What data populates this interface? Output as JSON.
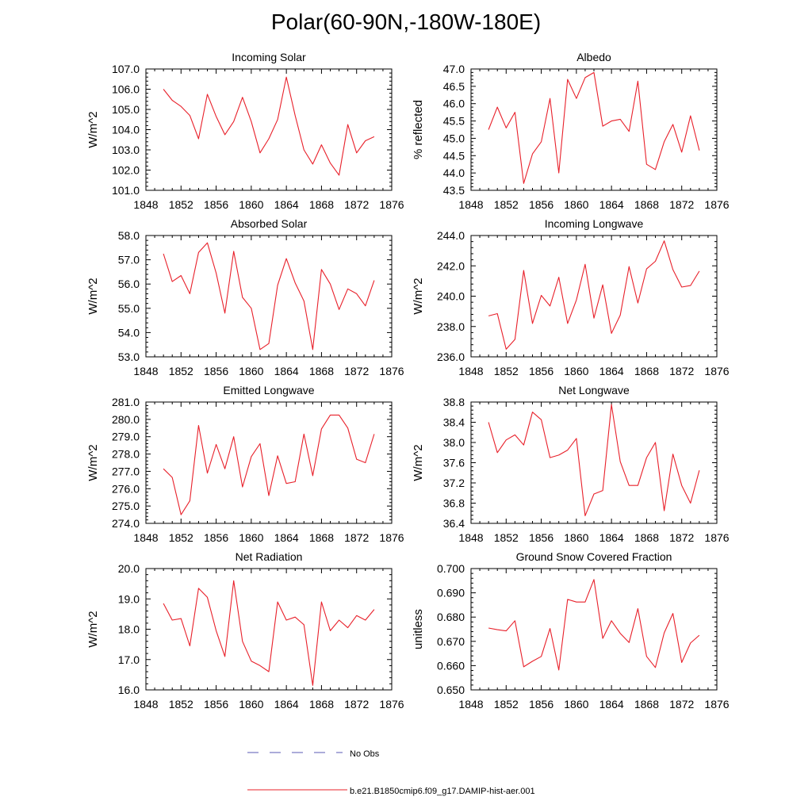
{
  "title": "Polar(60-90N,-180W-180E)",
  "legend": {
    "entries": [
      {
        "label": "No Obs",
        "color": "#5a5ab4",
        "dash": true
      },
      {
        "label": "b.e21.B1850cmip6.f09_g17.DAMIP-hist-aer.001",
        "color": "#e8202a",
        "dash": false
      }
    ]
  },
  "series_color": "#e8202a",
  "chart_data": [
    {
      "type": "line",
      "title": "Incoming Solar",
      "ylabel": "W/m^2",
      "xlim": [
        1848,
        1876
      ],
      "ylim": [
        101,
        107
      ],
      "xticks": [
        1848,
        1852,
        1856,
        1860,
        1864,
        1868,
        1872,
        1876
      ],
      "xtick_labels": [
        "1848",
        "1852",
        "1856",
        "1860",
        "1864",
        "1868",
        "1872",
        "1876"
      ],
      "yticks": [
        101,
        102,
        103,
        104,
        105,
        106,
        107
      ],
      "ytick_labels": [
        "101.0",
        "102.0",
        "103.0",
        "104.0",
        "105.0",
        "106.0",
        "107.0"
      ],
      "x": [
        1850,
        1851,
        1852,
        1853,
        1854,
        1855,
        1856,
        1857,
        1858,
        1859,
        1860,
        1861,
        1862,
        1863,
        1864,
        1865,
        1866,
        1867,
        1868,
        1869,
        1870,
        1871,
        1872,
        1873,
        1874
      ],
      "series": [
        {
          "name": "b.e21.B1850cmip6.f09_g17.DAMIP-hist-aer.001",
          "values": [
            106.0,
            105.45,
            105.15,
            104.7,
            103.55,
            105.75,
            104.65,
            103.75,
            104.4,
            105.6,
            104.4,
            102.85,
            103.55,
            104.5,
            106.6,
            104.7,
            103.0,
            102.3,
            103.25,
            102.35,
            101.75,
            104.25,
            102.85,
            103.45,
            103.65
          ]
        }
      ]
    },
    {
      "type": "line",
      "title": "Albedo",
      "ylabel": "% reflected",
      "xlim": [
        1848,
        1876
      ],
      "ylim": [
        43.5,
        47.0
      ],
      "xticks": [
        1848,
        1852,
        1856,
        1860,
        1864,
        1868,
        1872,
        1876
      ],
      "xtick_labels": [
        "1848",
        "1852",
        "1856",
        "1860",
        "1864",
        "1868",
        "1872",
        "1876"
      ],
      "yticks": [
        43.5,
        44.0,
        44.5,
        45.0,
        45.5,
        46.0,
        46.5,
        47.0
      ],
      "ytick_labels": [
        "43.5",
        "44.0",
        "44.5",
        "45.0",
        "45.5",
        "46.0",
        "46.5",
        "47.0"
      ],
      "x": [
        1850,
        1851,
        1852,
        1853,
        1854,
        1855,
        1856,
        1857,
        1858,
        1859,
        1860,
        1861,
        1862,
        1863,
        1864,
        1865,
        1866,
        1867,
        1868,
        1869,
        1870,
        1871,
        1872,
        1873,
        1874
      ],
      "series": [
        {
          "name": "b.e21.B1850cmip6.f09_g17.DAMIP-hist-aer.001",
          "values": [
            45.25,
            45.9,
            45.3,
            45.75,
            43.7,
            44.55,
            44.9,
            46.15,
            44.0,
            46.7,
            46.15,
            46.75,
            46.9,
            45.35,
            45.5,
            45.55,
            45.2,
            46.65,
            44.25,
            44.1,
            44.9,
            45.4,
            44.6,
            45.65,
            44.65
          ]
        }
      ]
    },
    {
      "type": "line",
      "title": "Absorbed Solar",
      "ylabel": "W/m^2",
      "xlim": [
        1848,
        1876
      ],
      "ylim": [
        53,
        58
      ],
      "xticks": [
        1848,
        1852,
        1856,
        1860,
        1864,
        1868,
        1872,
        1876
      ],
      "xtick_labels": [
        "1848",
        "1852",
        "1856",
        "1860",
        "1864",
        "1868",
        "1872",
        "1876"
      ],
      "yticks": [
        53,
        54,
        55,
        56,
        57,
        58
      ],
      "ytick_labels": [
        "53.0",
        "54.0",
        "55.0",
        "56.0",
        "57.0",
        "58.0"
      ],
      "x": [
        1850,
        1851,
        1852,
        1853,
        1854,
        1855,
        1856,
        1857,
        1858,
        1859,
        1860,
        1861,
        1862,
        1863,
        1864,
        1865,
        1866,
        1867,
        1868,
        1869,
        1870,
        1871,
        1872,
        1873,
        1874
      ],
      "series": [
        {
          "name": "b.e21.B1850cmip6.f09_g17.DAMIP-hist-aer.001",
          "values": [
            57.25,
            56.1,
            56.35,
            55.6,
            57.3,
            57.7,
            56.45,
            54.8,
            57.35,
            55.45,
            55.0,
            53.3,
            53.55,
            55.95,
            57.05,
            56.05,
            55.3,
            53.3,
            56.6,
            56.0,
            54.95,
            55.8,
            55.6,
            55.1,
            56.15
          ]
        }
      ]
    },
    {
      "type": "line",
      "title": "Incoming Longwave",
      "ylabel": "W/m^2",
      "xlim": [
        1848,
        1876
      ],
      "ylim": [
        236,
        244
      ],
      "xticks": [
        1848,
        1852,
        1856,
        1860,
        1864,
        1868,
        1872,
        1876
      ],
      "xtick_labels": [
        "1848",
        "1852",
        "1856",
        "1860",
        "1864",
        "1868",
        "1872",
        "1876"
      ],
      "yticks": [
        236,
        238,
        240,
        242,
        244
      ],
      "ytick_labels": [
        "236.0",
        "238.0",
        "240.0",
        "242.0",
        "244.0"
      ],
      "x": [
        1850,
        1851,
        1852,
        1853,
        1854,
        1855,
        1856,
        1857,
        1858,
        1859,
        1860,
        1861,
        1862,
        1863,
        1864,
        1865,
        1866,
        1867,
        1868,
        1869,
        1870,
        1871,
        1872,
        1873,
        1874
      ],
      "series": [
        {
          "name": "b.e21.B1850cmip6.f09_g17.DAMIP-hist-aer.001",
          "values": [
            238.7,
            238.85,
            236.5,
            237.15,
            241.7,
            238.2,
            240.05,
            239.35,
            241.25,
            238.2,
            239.75,
            242.1,
            238.55,
            240.75,
            237.55,
            238.75,
            241.95,
            239.55,
            241.8,
            242.3,
            243.65,
            241.75,
            240.6,
            240.7,
            241.65
          ]
        }
      ]
    },
    {
      "type": "line",
      "title": "Emitted Longwave",
      "ylabel": "W/m^2",
      "xlim": [
        1848,
        1876
      ],
      "ylim": [
        274,
        281
      ],
      "xticks": [
        1848,
        1852,
        1856,
        1860,
        1864,
        1868,
        1872,
        1876
      ],
      "xtick_labels": [
        "1848",
        "1852",
        "1856",
        "1860",
        "1864",
        "1868",
        "1872",
        "1876"
      ],
      "yticks": [
        274,
        275,
        276,
        277,
        278,
        279,
        280,
        281
      ],
      "ytick_labels": [
        "274.0",
        "275.0",
        "276.0",
        "277.0",
        "278.0",
        "279.0",
        "280.0",
        "281.0"
      ],
      "x": [
        1850,
        1851,
        1852,
        1853,
        1854,
        1855,
        1856,
        1857,
        1858,
        1859,
        1860,
        1861,
        1862,
        1863,
        1864,
        1865,
        1866,
        1867,
        1868,
        1869,
        1870,
        1871,
        1872,
        1873,
        1874
      ],
      "series": [
        {
          "name": "b.e21.B1850cmip6.f09_g17.DAMIP-hist-aer.001",
          "values": [
            277.15,
            276.65,
            274.5,
            275.3,
            279.65,
            276.9,
            278.55,
            277.15,
            279.0,
            276.1,
            277.85,
            278.6,
            275.6,
            277.9,
            276.3,
            276.4,
            279.15,
            276.75,
            279.45,
            280.25,
            280.25,
            279.5,
            277.7,
            277.5,
            279.15
          ]
        }
      ]
    },
    {
      "type": "line",
      "title": "Net Longwave",
      "ylabel": "W/m^2",
      "xlim": [
        1848,
        1876
      ],
      "ylim": [
        36.4,
        38.8
      ],
      "xticks": [
        1848,
        1852,
        1856,
        1860,
        1864,
        1868,
        1872,
        1876
      ],
      "xtick_labels": [
        "1848",
        "1852",
        "1856",
        "1860",
        "1864",
        "1868",
        "1872",
        "1876"
      ],
      "yticks": [
        36.4,
        36.8,
        37.2,
        37.6,
        38.0,
        38.4,
        38.8
      ],
      "ytick_labels": [
        "36.4",
        "36.8",
        "37.2",
        "37.6",
        "38.0",
        "38.4",
        "38.8"
      ],
      "x": [
        1850,
        1851,
        1852,
        1853,
        1854,
        1855,
        1856,
        1857,
        1858,
        1859,
        1860,
        1861,
        1862,
        1863,
        1864,
        1865,
        1866,
        1867,
        1868,
        1869,
        1870,
        1871,
        1872,
        1873,
        1874
      ],
      "series": [
        {
          "name": "b.e21.B1850cmip6.f09_g17.DAMIP-hist-aer.001",
          "values": [
            38.4,
            37.8,
            38.05,
            38.15,
            37.95,
            38.6,
            38.45,
            37.7,
            37.75,
            37.85,
            38.08,
            36.55,
            36.98,
            37.05,
            38.75,
            37.62,
            37.15,
            37.15,
            37.7,
            38.0,
            36.65,
            37.77,
            37.15,
            36.8,
            37.45
          ]
        }
      ]
    },
    {
      "type": "line",
      "title": "Net Radiation",
      "ylabel": "W/m^2",
      "xlim": [
        1848,
        1876
      ],
      "ylim": [
        16,
        20
      ],
      "xticks": [
        1848,
        1852,
        1856,
        1860,
        1864,
        1868,
        1872,
        1876
      ],
      "xtick_labels": [
        "1848",
        "1852",
        "1856",
        "1860",
        "1864",
        "1868",
        "1872",
        "1876"
      ],
      "yticks": [
        16,
        17,
        18,
        19,
        20
      ],
      "ytick_labels": [
        "16.0",
        "17.0",
        "18.0",
        "19.0",
        "20.0"
      ],
      "x": [
        1850,
        1851,
        1852,
        1853,
        1854,
        1855,
        1856,
        1857,
        1858,
        1859,
        1860,
        1861,
        1862,
        1863,
        1864,
        1865,
        1866,
        1867,
        1868,
        1869,
        1870,
        1871,
        1872,
        1873,
        1874
      ],
      "series": [
        {
          "name": "b.e21.B1850cmip6.f09_g17.DAMIP-hist-aer.001",
          "values": [
            18.85,
            18.3,
            18.35,
            17.45,
            19.35,
            19.05,
            17.95,
            17.1,
            19.6,
            17.6,
            16.95,
            16.8,
            16.6,
            18.9,
            18.3,
            18.4,
            18.15,
            16.15,
            18.9,
            17.95,
            18.3,
            18.05,
            18.45,
            18.3,
            18.65
          ]
        }
      ]
    },
    {
      "type": "line",
      "title": "Ground Snow Covered Fraction",
      "ylabel": "unitless",
      "xlim": [
        1848,
        1876
      ],
      "ylim": [
        0.65,
        0.7
      ],
      "xticks": [
        1848,
        1852,
        1856,
        1860,
        1864,
        1868,
        1872,
        1876
      ],
      "xtick_labels": [
        "1848",
        "1852",
        "1856",
        "1860",
        "1864",
        "1868",
        "1872",
        "1876"
      ],
      "yticks": [
        0.65,
        0.66,
        0.67,
        0.68,
        0.69,
        0.7
      ],
      "ytick_labels": [
        "0.650",
        "0.660",
        "0.670",
        "0.680",
        "0.690",
        "0.700"
      ],
      "x": [
        1850,
        1851,
        1852,
        1853,
        1854,
        1855,
        1856,
        1857,
        1858,
        1859,
        1860,
        1861,
        1862,
        1863,
        1864,
        1865,
        1866,
        1867,
        1868,
        1869,
        1870,
        1871,
        1872,
        1873,
        1874
      ],
      "series": [
        {
          "name": "b.e21.B1850cmip6.f09_g17.DAMIP-hist-aer.001",
          "values": [
            0.6755,
            0.6748,
            0.6743,
            0.6785,
            0.6595,
            0.6618,
            0.6638,
            0.6753,
            0.6582,
            0.6873,
            0.6862,
            0.6862,
            0.6955,
            0.6712,
            0.6785,
            0.6733,
            0.6695,
            0.6835,
            0.6638,
            0.6592,
            0.6735,
            0.6815,
            0.6613,
            0.6693,
            0.6725
          ]
        }
      ]
    }
  ]
}
